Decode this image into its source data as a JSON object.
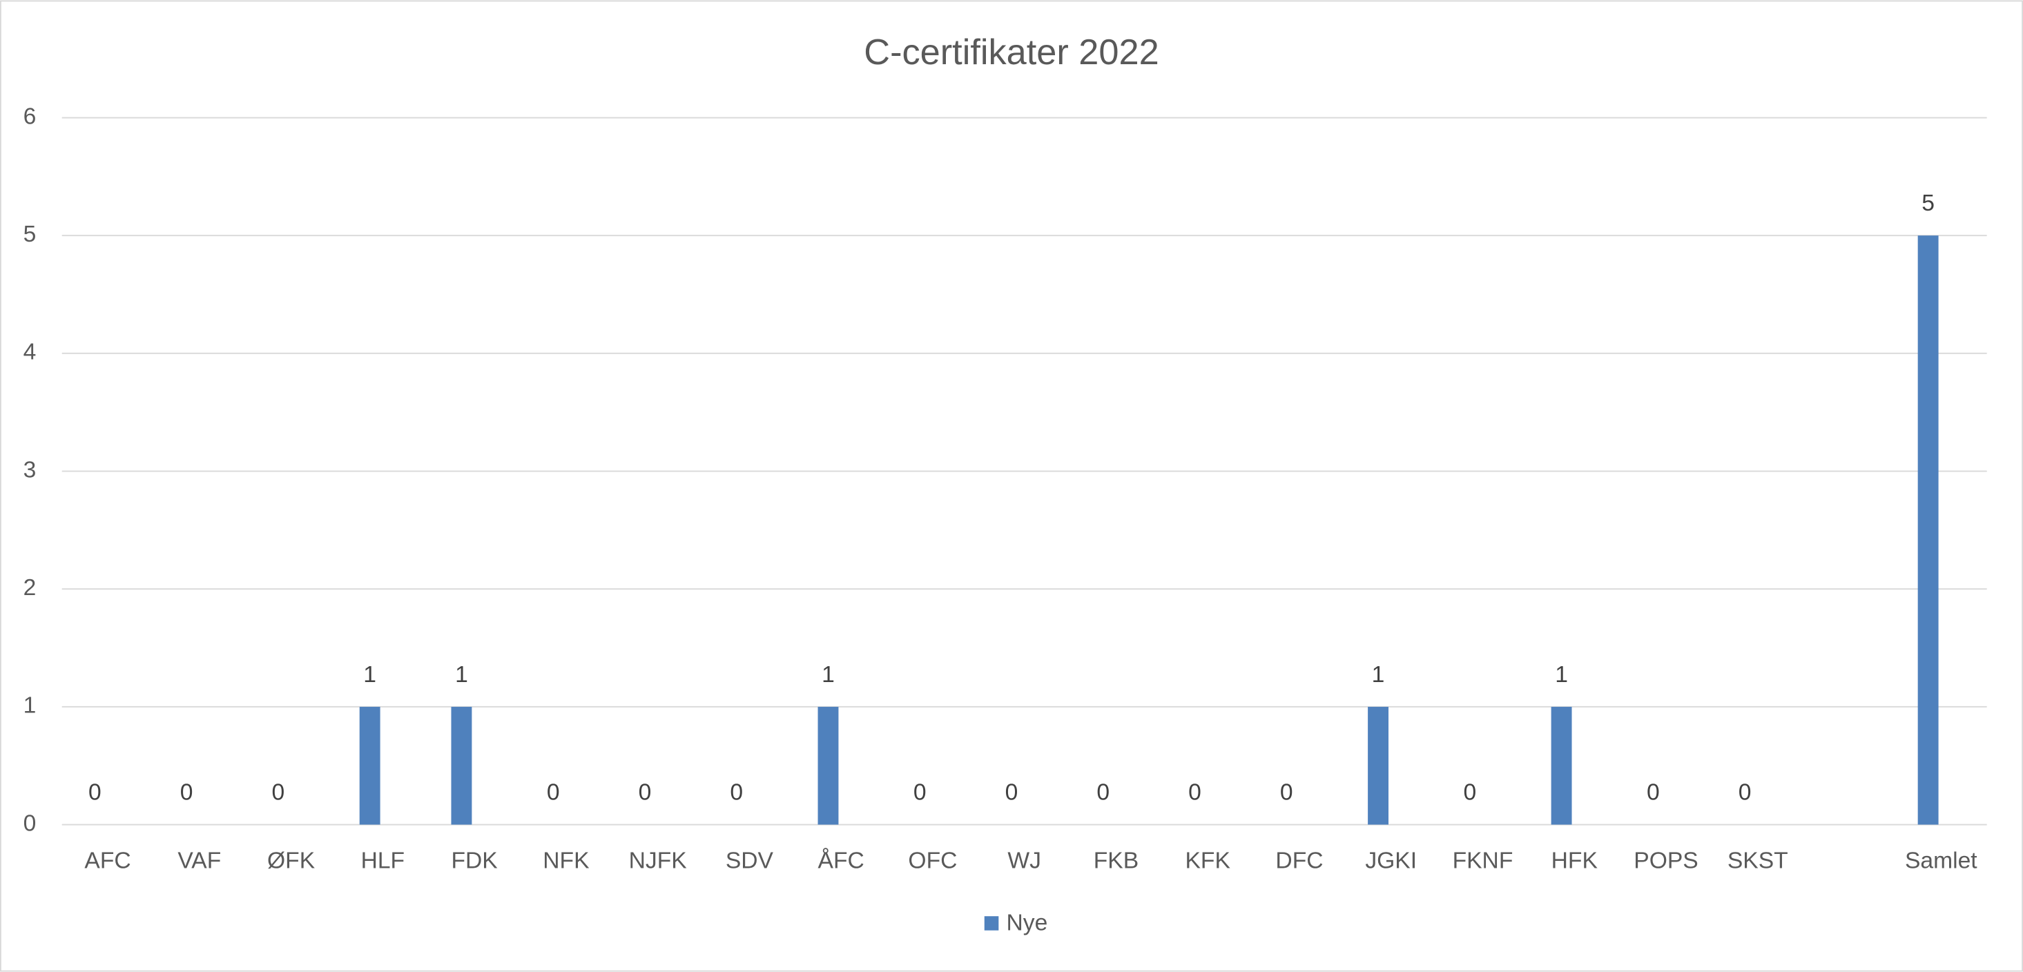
{
  "chart_data": {
    "type": "bar",
    "title": "C-certifikater 2022",
    "categories": [
      "AFC",
      "VAF",
      "ØFK",
      "HLF",
      "FDK",
      "NFK",
      "NJFK",
      "SDV",
      "ÅFC",
      "OFC",
      "WJ",
      "FKB",
      "KFK",
      "DFC",
      "JGKI",
      "FKNF",
      "HFK",
      "POPS",
      "SKST",
      null,
      "Samlet"
    ],
    "series": [
      {
        "name": "Nye",
        "color": "#4f81bd",
        "values": [
          0,
          0,
          0,
          1,
          1,
          0,
          0,
          0,
          1,
          0,
          0,
          0,
          0,
          0,
          1,
          0,
          1,
          0,
          0,
          null,
          5
        ]
      }
    ],
    "ylim": [
      0,
      6
    ],
    "yticks": [
      0,
      1,
      2,
      3,
      4,
      5,
      6
    ],
    "grid": true,
    "legend": "bottom"
  }
}
